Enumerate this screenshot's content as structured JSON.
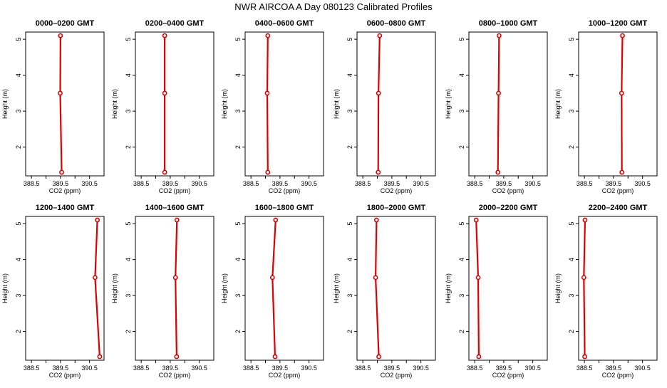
{
  "title": "NWR AIRCOA A  Day 080123  Calibrated Profiles",
  "colors": {
    "profile": "#dd0000",
    "axis": "#000000",
    "background": "#ffffff"
  },
  "chart_data": {
    "type": "line",
    "xlabel": "CO2 (ppm)",
    "ylabel": "Height (m)",
    "xlim": [
      388.3,
      391.0
    ],
    "ylim": [
      1.2,
      5.2
    ],
    "x_ticks": [
      "388.5",
      "389.5",
      "390.5"
    ],
    "x_tick_values": [
      388.5,
      389.0,
      389.5,
      390.0,
      390.5
    ],
    "y_ticks": [
      2,
      3,
      4,
      5
    ],
    "heights": [
      1.3,
      3.5,
      5.1
    ],
    "grid": false,
    "legend": "none",
    "panels": [
      {
        "title": "0000–0200 GMT",
        "values": [
          389.54,
          389.49,
          389.5
        ]
      },
      {
        "title": "0200–0400 GMT",
        "values": [
          389.31,
          389.31,
          389.31
        ]
      },
      {
        "title": "0400–0600 GMT",
        "values": [
          389.08,
          389.06,
          389.08
        ]
      },
      {
        "title": "0600–0800 GMT",
        "values": [
          389.03,
          389.04,
          389.08
        ]
      },
      {
        "title": "0800–1000 GMT",
        "values": [
          389.3,
          389.32,
          389.34
        ]
      },
      {
        "title": "1000–1200 GMT",
        "values": [
          389.79,
          389.78,
          389.81
        ]
      },
      {
        "title": "1200–1400 GMT",
        "values": [
          390.85,
          390.69,
          390.77
        ]
      },
      {
        "title": "1400–1600 GMT",
        "values": [
          389.72,
          389.68,
          389.73
        ]
      },
      {
        "title": "1600–1800 GMT",
        "values": [
          389.33,
          389.24,
          389.35
        ]
      },
      {
        "title": "1800–2000 GMT",
        "values": [
          389.05,
          388.94,
          388.97
        ]
      },
      {
        "title": "2000–2200 GMT",
        "values": [
          388.64,
          388.62,
          388.55
        ]
      },
      {
        "title": "2200–2400 GMT",
        "values": [
          388.51,
          388.48,
          388.52
        ]
      }
    ]
  }
}
